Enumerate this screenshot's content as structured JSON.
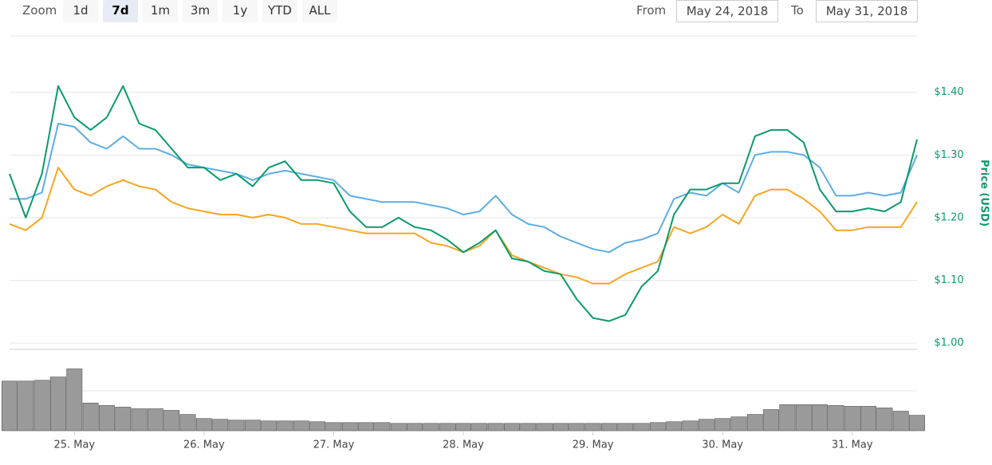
{
  "range_selector": {
    "label": "Zoom",
    "buttons": [
      "1d",
      "7d",
      "1m",
      "3m",
      "1y",
      "YTD",
      "ALL"
    ],
    "selected": 1,
    "from_label": "From",
    "from_value": "May 24, 2018",
    "to_label": "To",
    "to_value": "May 31, 2018"
  },
  "chart_data": [
    {
      "type": "line",
      "y_label": "Price (USD)",
      "axis_color": "#0a9a6e",
      "grid": true,
      "ylim": [
        0.99,
        1.49
      ],
      "yticks": [
        {
          "value": 1.0,
          "label": "$1.00"
        },
        {
          "value": 1.1,
          "label": "$1.10"
        },
        {
          "value": 1.2,
          "label": "$1.20"
        },
        {
          "value": 1.3,
          "label": "$1.30"
        },
        {
          "value": 1.4,
          "label": "$1.40"
        }
      ],
      "categories": [
        null,
        null,
        null,
        null,
        "25. May",
        null,
        null,
        null,
        null,
        null,
        null,
        null,
        "26. May",
        null,
        null,
        null,
        null,
        null,
        null,
        null,
        "27. May",
        null,
        null,
        null,
        null,
        null,
        null,
        null,
        "28. May",
        null,
        null,
        null,
        null,
        null,
        null,
        null,
        "29. May",
        null,
        null,
        null,
        null,
        null,
        null,
        null,
        "30. May",
        null,
        null,
        null,
        null,
        null,
        null,
        null,
        "31. May",
        null,
        null,
        null,
        null
      ],
      "series": [
        {
          "color": "#f5a623",
          "values": [
            1.19,
            1.18,
            1.2,
            1.28,
            1.245,
            1.235,
            1.25,
            1.26,
            1.25,
            1.245,
            1.225,
            1.215,
            1.21,
            1.205,
            1.205,
            1.2,
            1.205,
            1.2,
            1.19,
            1.19,
            1.185,
            1.18,
            1.175,
            1.175,
            1.175,
            1.175,
            1.16,
            1.155,
            1.145,
            1.155,
            1.18,
            1.14,
            1.13,
            1.12,
            1.11,
            1.105,
            1.095,
            1.095,
            1.11,
            1.12,
            1.13,
            1.185,
            1.175,
            1.185,
            1.205,
            1.19,
            1.235,
            1.245,
            1.245,
            1.23,
            1.21,
            1.18,
            1.18,
            1.185,
            1.185,
            1.185,
            1.225
          ]
        },
        {
          "color": "#5dade2",
          "values": [
            1.23,
            1.23,
            1.24,
            1.35,
            1.345,
            1.32,
            1.31,
            1.33,
            1.31,
            1.31,
            1.3,
            1.285,
            1.28,
            1.275,
            1.27,
            1.26,
            1.27,
            1.275,
            1.27,
            1.265,
            1.26,
            1.235,
            1.23,
            1.225,
            1.225,
            1.225,
            1.22,
            1.215,
            1.205,
            1.21,
            1.235,
            1.205,
            1.19,
            1.185,
            1.17,
            1.16,
            1.15,
            1.145,
            1.16,
            1.165,
            1.175,
            1.23,
            1.24,
            1.235,
            1.255,
            1.24,
            1.3,
            1.305,
            1.305,
            1.3,
            1.28,
            1.235,
            1.235,
            1.24,
            1.235,
            1.24,
            1.3
          ]
        },
        {
          "color": "#0a9a6e",
          "values": [
            1.27,
            1.2,
            1.27,
            1.41,
            1.36,
            1.34,
            1.36,
            1.41,
            1.35,
            1.34,
            1.31,
            1.28,
            1.28,
            1.26,
            1.27,
            1.25,
            1.28,
            1.29,
            1.26,
            1.26,
            1.255,
            1.21,
            1.185,
            1.185,
            1.2,
            1.185,
            1.18,
            1.165,
            1.145,
            1.16,
            1.18,
            1.135,
            1.13,
            1.115,
            1.11,
            1.07,
            1.04,
            1.035,
            1.045,
            1.09,
            1.115,
            1.205,
            1.245,
            1.245,
            1.255,
            1.255,
            1.33,
            1.34,
            1.34,
            1.32,
            1.245,
            1.21,
            1.21,
            1.215,
            1.21,
            1.225,
            1.325
          ]
        }
      ]
    },
    {
      "type": "bar",
      "color": "#9a9a9a",
      "ylim": [
        0,
        100
      ],
      "values": [
        61,
        61,
        62,
        66,
        76,
        34,
        31,
        29,
        27,
        27,
        25,
        20,
        15,
        14,
        13,
        13,
        12,
        12,
        12,
        11,
        10,
        10,
        10,
        10,
        9,
        9,
        9,
        9,
        9,
        9,
        9,
        9,
        9,
        9,
        9,
        9,
        9,
        9,
        9,
        9,
        10,
        11,
        12,
        14,
        15,
        17,
        20,
        26,
        32,
        32,
        32,
        31,
        30,
        30,
        28,
        24,
        19
      ]
    }
  ]
}
